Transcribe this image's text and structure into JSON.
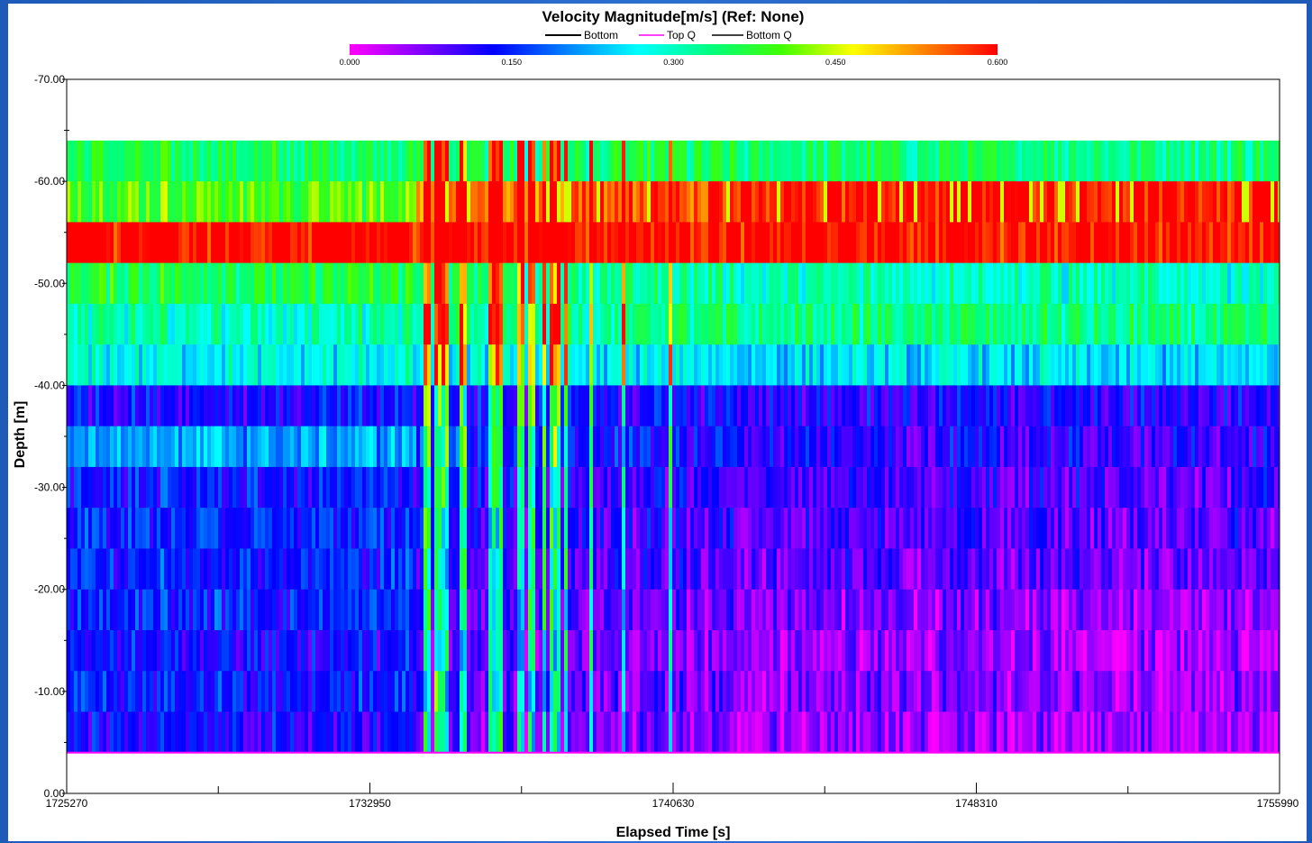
{
  "colors": {
    "frame": "#1e5bb8",
    "scale": [
      "#ff00ff",
      "#8000ff",
      "#0000ff",
      "#0080ff",
      "#00ffff",
      "#00ff80",
      "#40ff00",
      "#ffff00",
      "#ff8000",
      "#ff0000"
    ],
    "legend_bottom": "#000000",
    "legend_top_q": "#ff00ff",
    "legend_bottom_q": "#000000"
  },
  "chart_data": {
    "type": "heatmap",
    "title": "Velocity Magnitude[m/s] (Ref: None)",
    "xlabel": "Elapsed Time [s]",
    "ylabel": "Depth [m]",
    "xlim": [
      1725270,
      1755990
    ],
    "ylim": [
      0,
      -70
    ],
    "x_ticks": [
      "1725270",
      "1732950",
      "1740630",
      "1748310",
      "1755990"
    ],
    "y_ticks": [
      "0.00",
      "-10.00",
      "-20.00",
      "-30.00",
      "-40.00",
      "-50.00",
      "-60.00",
      "-70.00"
    ],
    "legend": [
      "Bottom",
      "Top Q",
      "Bottom Q"
    ],
    "colorbar": {
      "min": 0.0,
      "max": 0.6,
      "ticks": [
        "0.000",
        "0.150",
        "0.300",
        "0.450",
        "0.600"
      ]
    },
    "event_time": 1734050,
    "bins": [
      {
        "top": -64,
        "bottom": -60,
        "early": 0.35,
        "late": 0.34
      },
      {
        "top": -60,
        "bottom": -56,
        "early": 0.4,
        "late": 0.6
      },
      {
        "top": -56,
        "bottom": -52,
        "early": 0.6,
        "late": 0.6
      },
      {
        "top": -52,
        "bottom": -48,
        "early": 0.36,
        "late": 0.3
      },
      {
        "top": -48,
        "bottom": -44,
        "early": 0.3,
        "late": 0.33
      },
      {
        "top": -44,
        "bottom": -40,
        "early": 0.27,
        "late": 0.25
      },
      {
        "top": -40,
        "bottom": -36,
        "early": 0.13,
        "late": 0.12
      },
      {
        "top": -36,
        "bottom": -32,
        "early": 0.22,
        "late": 0.11
      },
      {
        "top": -32,
        "bottom": -28,
        "early": 0.14,
        "late": 0.1
      },
      {
        "top": -28,
        "bottom": -24,
        "early": 0.15,
        "late": 0.09
      },
      {
        "top": -24,
        "bottom": -20,
        "early": 0.15,
        "late": 0.08
      },
      {
        "top": -20,
        "bottom": -16,
        "early": 0.15,
        "late": 0.06
      },
      {
        "top": -16,
        "bottom": -12,
        "early": 0.13,
        "late": 0.05
      },
      {
        "top": -12,
        "bottom": -8,
        "early": 0.14,
        "late": 0.06
      },
      {
        "top": -8,
        "bottom": -4,
        "early": 0.12,
        "late": 0.05
      }
    ]
  }
}
